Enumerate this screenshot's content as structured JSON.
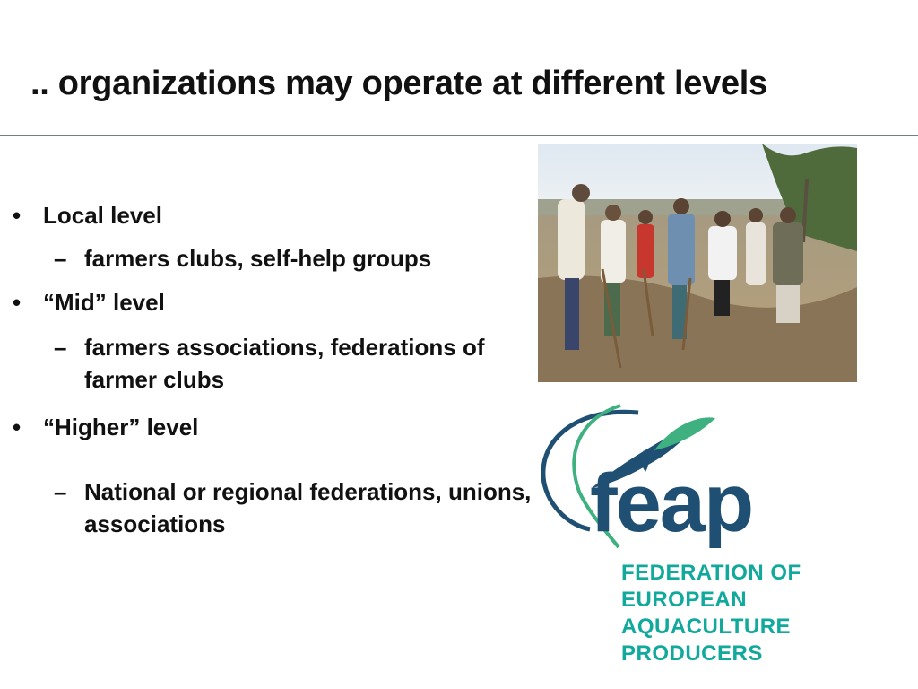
{
  "slide": {
    "title": ".. organizations may operate at different levels"
  },
  "bullets": [
    {
      "level": 1,
      "marker": "•",
      "text": "Local level"
    },
    {
      "level": 2,
      "marker": "–",
      "text": "farmers clubs, self-help groups"
    },
    {
      "level": 1,
      "marker": "•",
      "text": "“Mid” level"
    },
    {
      "level": 2,
      "marker": "–",
      "text": "farmers associations, federations of farmer clubs"
    },
    {
      "level": 1,
      "marker": "•",
      "text": "“Higher” level"
    },
    {
      "level": 2,
      "marker": "–",
      "text": "National or regional federations, unions, associations"
    }
  ],
  "logo": {
    "wordmark": "FEAP",
    "lines": [
      "FEDERATION OF",
      "EUROPEAN",
      "AQUACULTURE",
      "PRODUCERS"
    ],
    "colors": {
      "navy": "#1f4f73",
      "teal": "#10a99b",
      "green": "#3fb07f"
    }
  },
  "photo": {
    "icon": "group-of-farmers-photo"
  }
}
